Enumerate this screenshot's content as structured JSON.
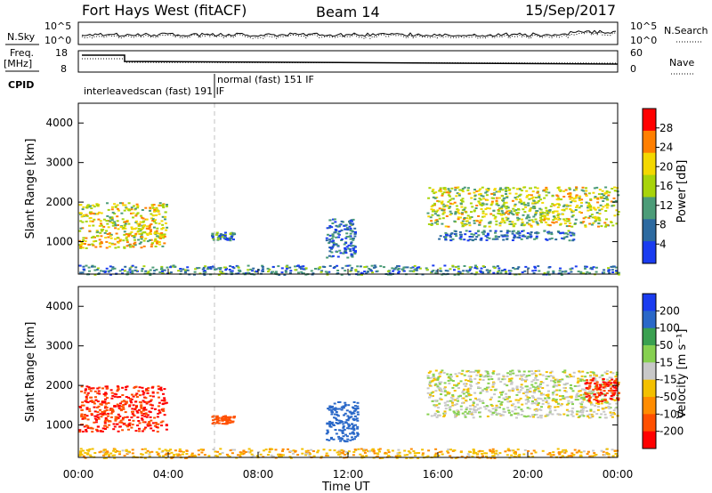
{
  "header": {
    "title": "Fort Hays West (fitACF)",
    "beam": "Beam 14",
    "date": "15/Sep/2017"
  },
  "panels": {
    "nsky_label": "N.Sky",
    "nsearch_label": "N.Search",
    "nsky_ticks": [
      "10^5",
      "10^0"
    ],
    "nsky_right_ticks": [
      "10^5",
      "10^0"
    ],
    "freq_label_1": "Freq.",
    "freq_label_2": "[MHz]",
    "freq_ticks": [
      "18",
      "8"
    ],
    "nave_ticks": [
      "60",
      "0"
    ],
    "nave_label": "Nave",
    "cpid_label": "CPID",
    "cpid_segments": [
      "interleavedscan (fast) 191 IF",
      "normal (fast) 151 IF"
    ]
  },
  "axes": {
    "ylabel": "Slant Range [km]",
    "xlabel": "Time UT",
    "power_label": "Power [dB]",
    "velocity_label": "Velocity [m s⁻¹]"
  },
  "chart_data": [
    {
      "type": "heatmap",
      "name": "power",
      "x_ticks": [
        "00:00",
        "04:00",
        "08:00",
        "12:00",
        "16:00",
        "20:00",
        "00:00"
      ],
      "y_ticks": [
        1000,
        2000,
        3000,
        4000
      ],
      "xlim": [
        0,
        24
      ],
      "ylim": [
        180,
        4500
      ],
      "colorbar_ticks": [
        "28",
        "24",
        "20",
        "16",
        "12",
        "8",
        "4"
      ],
      "colors": [
        "#ff0000",
        "#ff7f00",
        "#f3d800",
        "#a8d40a",
        "#4c9c78",
        "#2d6aa0",
        "#1a3cf0"
      ],
      "features": [
        {
          "t_start": 0.0,
          "t_end": 3.9,
          "r_low": 850,
          "r_high": 2000,
          "level": 20
        },
        {
          "t_start": 5.9,
          "t_end": 6.9,
          "r_low": 1050,
          "r_high": 1250,
          "level": 10
        },
        {
          "t_start": 11.0,
          "t_end": 12.3,
          "r_low": 600,
          "r_high": 1600,
          "level": 8
        },
        {
          "t_start": 15.5,
          "t_end": 24.0,
          "r_low": 1400,
          "r_high": 2400,
          "level": 18
        },
        {
          "t_start": 16.0,
          "t_end": 22.0,
          "r_low": 1050,
          "r_high": 1300,
          "level": 8
        },
        {
          "t_start": 0.0,
          "t_end": 24.0,
          "r_low": 180,
          "r_high": 420,
          "level": 10
        }
      ]
    },
    {
      "type": "heatmap",
      "name": "velocity",
      "x_ticks": [
        "00:00",
        "04:00",
        "08:00",
        "12:00",
        "16:00",
        "20:00",
        "00:00"
      ],
      "y_ticks": [
        1000,
        2000,
        3000,
        4000
      ],
      "xlim": [
        0,
        24
      ],
      "ylim": [
        180,
        4500
      ],
      "colorbar_ticks": [
        "200",
        "100",
        "50",
        "15",
        "-15",
        "-50",
        "-100",
        "-200"
      ],
      "colors": [
        "#1a3cf0",
        "#2a68c8",
        "#3aa050",
        "#86d050",
        "#c8c8c8",
        "#f3c000",
        "#ff8c00",
        "#ff5000",
        "#ff0000"
      ],
      "features": [
        {
          "t_start": 0.0,
          "t_end": 3.9,
          "r_low": 850,
          "r_high": 2000,
          "level": -200
        },
        {
          "t_start": 5.9,
          "t_end": 6.9,
          "r_low": 1050,
          "r_high": 1250,
          "level": -150
        },
        {
          "t_start": 11.0,
          "t_end": 12.4,
          "r_low": 600,
          "r_high": 1600,
          "level": 150
        },
        {
          "t_start": 15.5,
          "t_end": 24.0,
          "r_low": 1200,
          "r_high": 2400,
          "level": 0
        },
        {
          "t_start": 22.5,
          "t_end": 24.0,
          "r_low": 1600,
          "r_high": 2200,
          "level": -200
        },
        {
          "t_start": 0.0,
          "t_end": 24.0,
          "r_low": 180,
          "r_high": 420,
          "level": -40
        }
      ]
    }
  ]
}
